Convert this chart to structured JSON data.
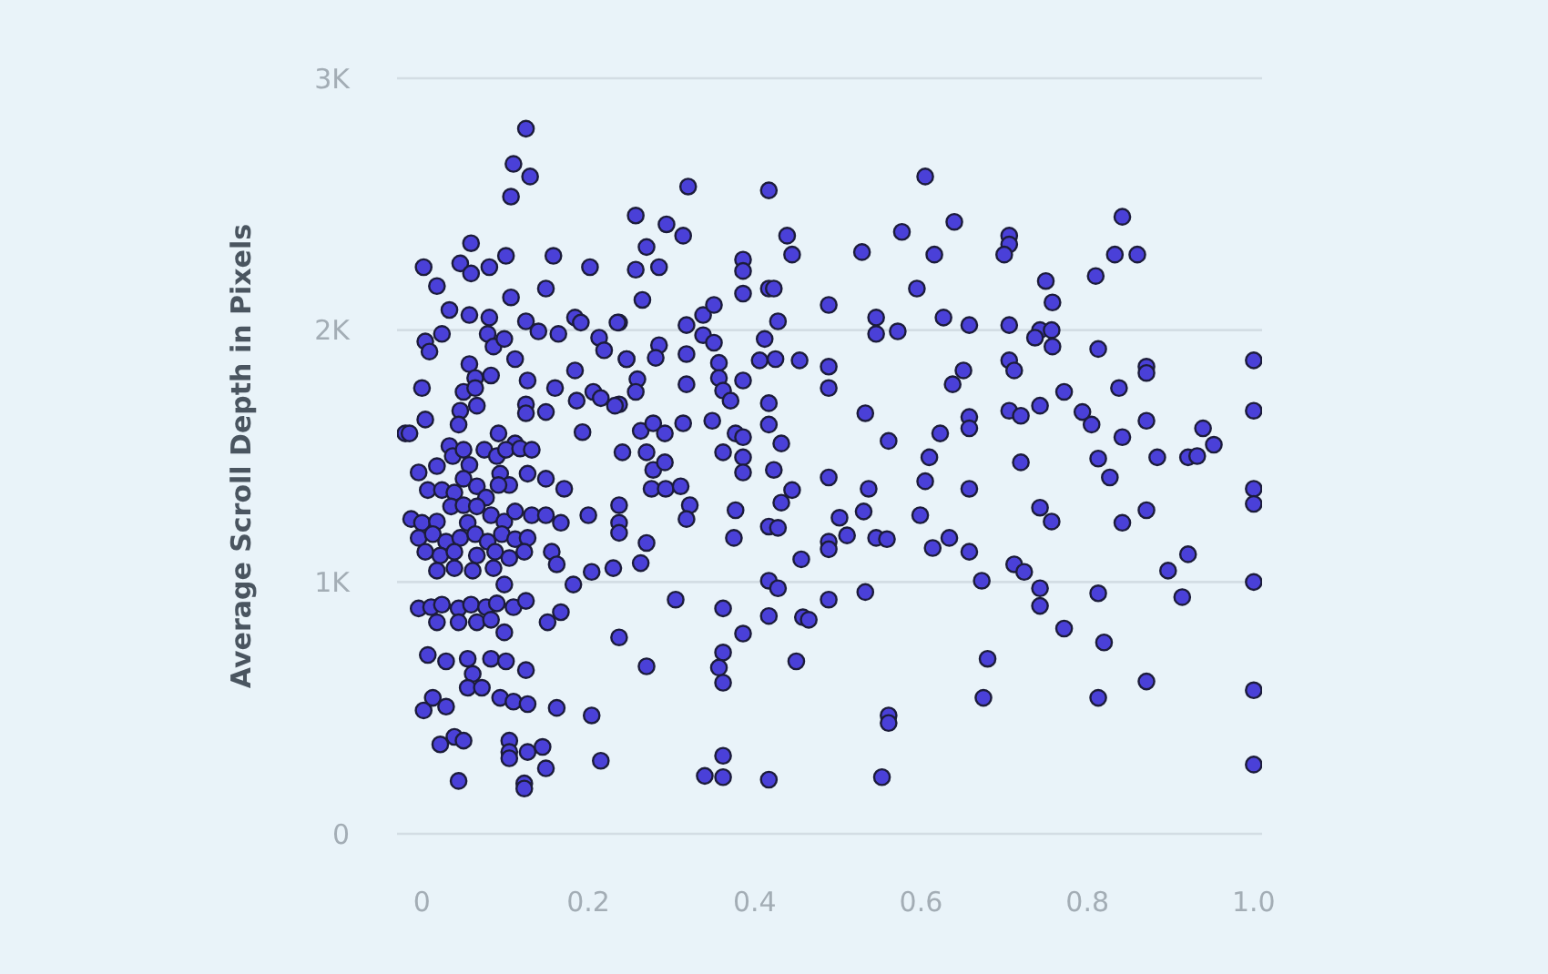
{
  "chart_data": {
    "type": "scatter",
    "ylabel": "Average Scroll Depth in Pixels",
    "xlim": [
      -0.03,
      1.01
    ],
    "xticks": [
      0,
      0.2,
      0.4,
      0.6,
      {
        "value": 1,
        "label": "1.0"
      },
      0.8
    ],
    "ylim": [
      0,
      3000
    ],
    "yticks": [
      {
        "value": 0,
        "label": "0"
      },
      {
        "value": 1000,
        "label": "1K"
      },
      {
        "value": 2000,
        "label": "2K"
      },
      {
        "value": 3000,
        "label": "3K"
      }
    ],
    "grid": "y",
    "marker": "circle",
    "series": [
      {
        "color": "#4a40d8",
        "x": [
          0.125,
          0.11,
          0.13,
          0.107,
          1.0,
          1.0,
          1.0,
          1.0,
          1.0,
          1.0,
          1.0,
          0.605,
          0.64,
          0.706,
          0.706,
          0.616,
          0.7,
          0.842,
          0.833,
          0.86,
          0.81,
          0.75,
          0.758,
          0.595,
          0.627,
          0.658,
          0.706,
          0.743,
          0.757,
          0.737,
          0.758,
          0.813,
          0.706,
          0.712,
          0.651,
          0.871,
          0.871,
          0.638,
          0.838,
          0.772,
          0.706,
          0.72,
          0.743,
          0.794,
          0.805,
          0.871,
          0.658,
          0.658,
          0.623,
          0.842,
          0.939,
          0.952,
          0.61,
          0.72,
          0.813,
          0.884,
          0.921,
          0.932,
          0.605,
          0.827,
          0.658,
          0.599,
          0.743,
          0.757,
          0.842,
          0.871,
          0.634,
          0.614,
          0.658,
          0.712,
          0.724,
          0.673,
          0.743,
          0.743,
          0.813,
          0.921,
          0.897,
          0.914,
          0.772,
          0.82,
          0.68,
          0.871,
          0.675,
          0.813,
          0.32,
          0.417,
          0.257,
          0.294,
          0.314,
          0.27,
          0.257,
          0.285,
          0.386,
          0.386,
          0.439,
          0.445,
          0.577,
          0.529,
          0.265,
          0.386,
          0.417,
          0.423,
          0.489,
          0.318,
          0.338,
          0.351,
          0.428,
          0.546,
          0.546,
          0.572,
          0.237,
          0.338,
          0.351,
          0.412,
          0.285,
          0.246,
          0.281,
          0.318,
          0.357,
          0.406,
          0.425,
          0.454,
          0.489,
          0.259,
          0.257,
          0.318,
          0.357,
          0.362,
          0.371,
          0.386,
          0.417,
          0.489,
          0.237,
          0.533,
          0.263,
          0.278,
          0.292,
          0.314,
          0.349,
          0.377,
          0.386,
          0.417,
          0.432,
          0.362,
          0.386,
          0.561,
          0.241,
          0.27,
          0.278,
          0.292,
          0.276,
          0.293,
          0.311,
          0.386,
          0.423,
          0.489,
          0.537,
          0.322,
          0.318,
          0.377,
          0.432,
          0.445,
          0.417,
          0.428,
          0.375,
          0.502,
          0.531,
          0.489,
          0.489,
          0.511,
          0.546,
          0.559,
          0.237,
          0.237,
          0.237,
          0.27,
          0.263,
          0.456,
          0.417,
          0.428,
          0.305,
          0.362,
          0.417,
          0.458,
          0.465,
          0.489,
          0.533,
          0.386,
          0.237,
          0.27,
          0.362,
          0.357,
          0.362,
          0.45,
          0.561,
          0.561,
          0.362,
          0.34,
          0.362,
          0.417,
          0.553,
          0.002,
          0.018,
          0.046,
          0.059,
          0.059,
          0.081,
          0.101,
          0.158,
          0.202,
          0.149,
          0.107,
          0.033,
          0.057,
          0.081,
          0.125,
          0.14,
          0.164,
          0.184,
          0.191,
          0.235,
          0.004,
          0.009,
          0.024,
          0.079,
          0.086,
          0.099,
          0.112,
          0.213,
          0.219,
          0.246,
          0.057,
          0.064,
          0.083,
          0.127,
          0.184,
          0.16,
          0.0,
          0.05,
          0.064,
          0.125,
          0.125,
          0.149,
          0.186,
          0.206,
          0.215,
          0.232,
          0.004,
          0.046,
          0.044,
          0.066,
          0.092,
          0.112,
          0.193,
          -0.02,
          -0.015,
          -0.004,
          0.018,
          0.033,
          0.037,
          0.05,
          0.057,
          0.075,
          0.09,
          0.101,
          0.118,
          0.132,
          0.094,
          0.105,
          0.127,
          0.149,
          0.171,
          0.007,
          0.024,
          0.039,
          0.05,
          0.066,
          0.077,
          0.092,
          -0.013,
          0.0,
          0.018,
          0.035,
          0.05,
          0.066,
          0.055,
          0.083,
          0.099,
          0.112,
          0.132,
          0.149,
          0.167,
          0.2,
          -0.004,
          0.013,
          0.029,
          0.046,
          0.064,
          0.079,
          0.096,
          0.112,
          0.127,
          0.156,
          0.162,
          0.004,
          0.022,
          0.039,
          0.066,
          0.088,
          0.105,
          0.123,
          0.018,
          0.039,
          0.061,
          0.086,
          0.099,
          0.182,
          0.204,
          0.23,
          -0.004,
          0.011,
          0.024,
          0.044,
          0.059,
          0.077,
          0.09,
          0.11,
          0.125,
          0.018,
          0.044,
          0.066,
          0.083,
          0.099,
          0.151,
          0.167,
          0.007,
          0.029,
          0.055,
          0.061,
          0.083,
          0.101,
          0.125,
          0.055,
          0.072,
          0.094,
          0.11,
          0.127,
          0.162,
          0.204,
          0.002,
          0.013,
          0.029,
          0.022,
          0.039,
          0.05,
          0.105,
          0.105,
          0.105,
          0.127,
          0.145,
          0.149,
          0.215,
          0.044,
          0.123,
          0.123
        ],
        "values": [
          2800,
          2660,
          2610,
          2530,
          1880,
          1680,
          1370,
          1310,
          1000,
          570,
          275,
          2610,
          2430,
          2375,
          2340,
          2300,
          2300,
          2450,
          2300,
          2300,
          2215,
          2195,
          2110,
          2165,
          2050,
          2020,
          2020,
          2000,
          2000,
          1970,
          1935,
          1925,
          1880,
          1840,
          1840,
          1855,
          1830,
          1785,
          1770,
          1755,
          1680,
          1660,
          1700,
          1675,
          1625,
          1640,
          1655,
          1610,
          1590,
          1575,
          1610,
          1545,
          1495,
          1475,
          1490,
          1495,
          1495,
          1500,
          1400,
          1415,
          1370,
          1265,
          1295,
          1240,
          1235,
          1285,
          1175,
          1135,
          1120,
          1070,
          1040,
          1005,
          975,
          905,
          955,
          1110,
          1045,
          940,
          815,
          760,
          695,
          605,
          540,
          540,
          2570,
          2555,
          2455,
          2420,
          2375,
          2330,
          2240,
          2250,
          2280,
          2235,
          2375,
          2300,
          2390,
          2310,
          2120,
          2145,
          2165,
          2165,
          2100,
          2020,
          2060,
          2100,
          2035,
          2050,
          1985,
          1995,
          2030,
          1980,
          1950,
          1965,
          1940,
          1885,
          1890,
          1905,
          1870,
          1880,
          1885,
          1880,
          1855,
          1805,
          1755,
          1785,
          1810,
          1760,
          1720,
          1800,
          1710,
          1770,
          1705,
          1670,
          1600,
          1630,
          1590,
          1630,
          1640,
          1590,
          1575,
          1625,
          1550,
          1515,
          1495,
          1560,
          1515,
          1515,
          1445,
          1475,
          1370,
          1370,
          1380,
          1435,
          1445,
          1415,
          1370,
          1305,
          1250,
          1285,
          1315,
          1365,
          1220,
          1215,
          1175,
          1255,
          1280,
          1160,
          1130,
          1185,
          1175,
          1170,
          1305,
          1235,
          1195,
          1155,
          1075,
          1090,
          1005,
          975,
          930,
          895,
          865,
          860,
          850,
          930,
          960,
          795,
          780,
          665,
          720,
          660,
          600,
          685,
          470,
          440,
          310,
          230,
          225,
          215,
          225,
          2250,
          2175,
          2265,
          2345,
          2225,
          2250,
          2295,
          2295,
          2250,
          2165,
          2130,
          2080,
          2060,
          2050,
          2035,
          1995,
          1985,
          2050,
          2030,
          2030,
          1955,
          1915,
          1985,
          1985,
          1935,
          1965,
          1885,
          1970,
          1920,
          1885,
          1865,
          1810,
          1820,
          1800,
          1840,
          1770,
          1770,
          1755,
          1770,
          1705,
          1670,
          1675,
          1720,
          1755,
          1730,
          1700,
          1645,
          1680,
          1625,
          1700,
          1590,
          1550,
          1595,
          1590,
          1590,
          1435,
          1460,
          1540,
          1500,
          1525,
          1465,
          1525,
          1500,
          1525,
          1530,
          1525,
          1430,
          1385,
          1430,
          1410,
          1370,
          1365,
          1365,
          1355,
          1410,
          1380,
          1335,
          1385,
          1250,
          1235,
          1240,
          1300,
          1305,
          1300,
          1235,
          1265,
          1240,
          1280,
          1265,
          1265,
          1235,
          1265,
          1175,
          1190,
          1160,
          1175,
          1190,
          1160,
          1190,
          1170,
          1175,
          1120,
          1070,
          1120,
          1105,
          1120,
          1105,
          1120,
          1095,
          1120,
          1045,
          1055,
          1045,
          1055,
          990,
          990,
          1040,
          1055,
          895,
          900,
          910,
          895,
          910,
          900,
          915,
          900,
          925,
          840,
          840,
          840,
          850,
          800,
          840,
          880,
          710,
          685,
          695,
          635,
          695,
          685,
          650,
          580,
          580,
          540,
          525,
          515,
          500,
          470,
          490,
          540,
          505,
          355,
          385,
          370,
          370,
          325,
          300,
          325,
          345,
          260,
          290,
          210,
          200,
          180
        ]
      }
    ]
  }
}
